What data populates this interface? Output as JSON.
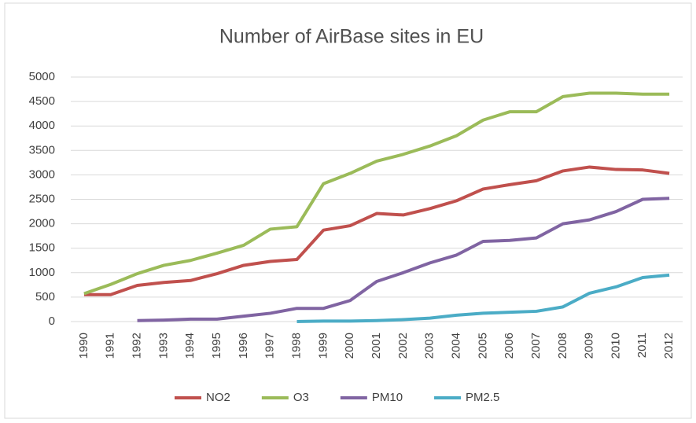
{
  "chart_data": {
    "type": "line",
    "title": "Number of AirBase sites in EU",
    "categories": [
      "1990",
      "1991",
      "1992",
      "1993",
      "1994",
      "1995",
      "1996",
      "1997",
      "1998",
      "1999",
      "2000",
      "2001",
      "2002",
      "2003",
      "2004",
      "2005",
      "2006",
      "2007",
      "2008",
      "2009",
      "2010",
      "2011",
      "2012"
    ],
    "series": [
      {
        "name": "NO2",
        "color": "#c0504d",
        "values": [
          550,
          550,
          740,
          800,
          840,
          980,
          1150,
          1230,
          1270,
          1870,
          1960,
          2210,
          2180,
          2310,
          2470,
          2710,
          2800,
          2880,
          3080,
          3160,
          3110,
          3100,
          3030
        ]
      },
      {
        "name": "O3",
        "color": "#9bbb59",
        "values": [
          570,
          760,
          980,
          1150,
          1250,
          1400,
          1560,
          1890,
          1940,
          2820,
          3030,
          3280,
          3420,
          3590,
          3800,
          4120,
          4290,
          4290,
          4600,
          4670,
          4670,
          4650,
          4650
        ]
      },
      {
        "name": "PM10",
        "color": "#8064a2",
        "values": [
          null,
          null,
          20,
          30,
          50,
          50,
          110,
          170,
          270,
          270,
          430,
          820,
          1000,
          1200,
          1360,
          1640,
          1660,
          1710,
          2000,
          2080,
          2250,
          2500,
          2520
        ]
      },
      {
        "name": "PM2.5",
        "color": "#4bacc6",
        "values": [
          null,
          null,
          null,
          null,
          null,
          null,
          null,
          null,
          0,
          10,
          10,
          20,
          40,
          70,
          130,
          170,
          190,
          210,
          300,
          580,
          710,
          900,
          950
        ]
      }
    ],
    "ylim": [
      0,
      5000
    ],
    "yticks": [
      0,
      500,
      1000,
      1500,
      2000,
      2500,
      3000,
      3500,
      4000,
      4500,
      5000
    ],
    "grid": true,
    "legend": "bottom"
  }
}
